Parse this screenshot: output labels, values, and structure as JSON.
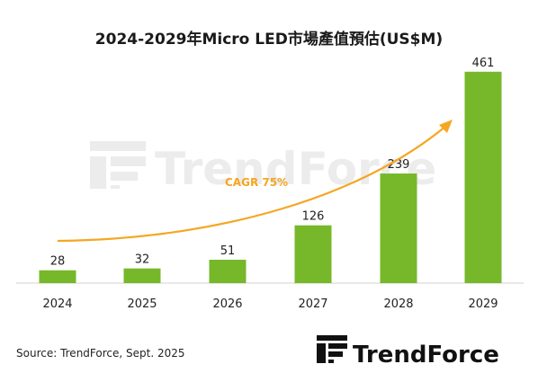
{
  "chart_data": {
    "type": "bar",
    "title": "2024-2029年Micro LED市場產值預估(US$M)",
    "categories": [
      "2024",
      "2025",
      "2026",
      "2027",
      "2028",
      "2029"
    ],
    "values": [
      28,
      32,
      51,
      126,
      239,
      461
    ],
    "ylim": [
      0,
      490
    ],
    "grid": false,
    "legend": "none",
    "annotation": "CAGR 75%",
    "bar_color": "#76b82a",
    "curve_color": "#f5a623"
  },
  "source": "Source: TrendForce, Sept. 2025",
  "logo": {
    "text": "TrendForce",
    "icon": "trendforce-logo-icon"
  },
  "watermark": {
    "text": "TrendForce"
  }
}
